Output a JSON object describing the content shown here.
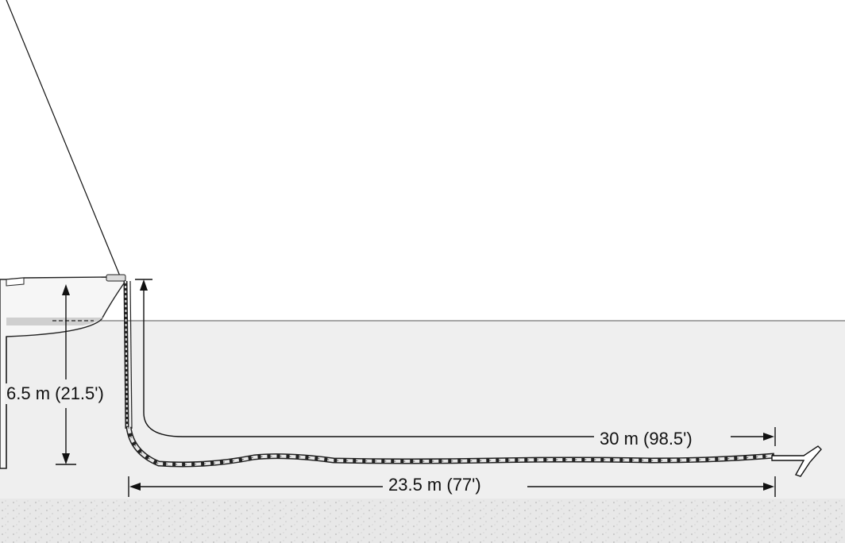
{
  "diagram": {
    "depth_label": "6.5 m (21.5')",
    "rode_length_label": "30 m (98.5')",
    "horizontal_distance_label": "23.5 m (77')"
  },
  "colors": {
    "sky": "#ffffff",
    "water": "#efefef",
    "seabed": "#e6e6e6",
    "line": "#111111",
    "hull": "#f4f4f4",
    "waterline": "#cfcfcf"
  }
}
